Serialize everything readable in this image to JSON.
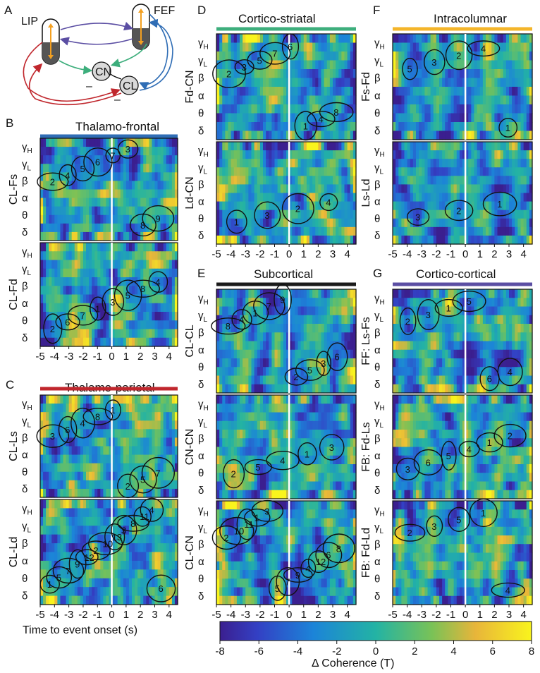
{
  "panels": {
    "A": {
      "letter": "A",
      "nodes": {
        "lip": "LIP",
        "fef": "FEF",
        "cn": "CN",
        "cl": "CL"
      },
      "minus1": "–",
      "minus2": "–"
    },
    "B": {
      "letter": "B",
      "title": "Thalamo-frontal",
      "color": "#2f6db5",
      "sub": [
        {
          "label": "CL-Fs",
          "clusters": [
            "2",
            "4",
            "5",
            "6",
            "7",
            "3",
            "8",
            "9"
          ]
        },
        {
          "label": "CL-Fd",
          "clusters": [
            "2",
            "6",
            "7",
            "1",
            "3",
            "5",
            "8",
            "4"
          ]
        }
      ]
    },
    "C": {
      "letter": "C",
      "title": "Thalamo-parietal",
      "color": "#c0272d",
      "sub": [
        {
          "label": "CL-Ls",
          "clusters": [
            "3",
            "6",
            "4",
            "8",
            "1",
            "2",
            "5",
            "7"
          ]
        },
        {
          "label": "CL-Ld",
          "clusters": [
            "1",
            "5",
            "7",
            "9",
            "12",
            "2",
            "10",
            "13",
            "3",
            "8",
            "11",
            "4",
            "6"
          ]
        }
      ]
    },
    "D": {
      "letter": "D",
      "title": "Cortico-striatal",
      "color": "#3dae7c",
      "sub": [
        {
          "label": "Fd-CN",
          "clusters": [
            "2",
            "3",
            "5",
            "7",
            "6",
            "1",
            "4",
            "8"
          ]
        },
        {
          "label": "Ld-CN",
          "clusters": [
            "1",
            "3",
            "2",
            "4"
          ]
        }
      ]
    },
    "E": {
      "letter": "E",
      "title": "Subcortical",
      "color": "#1a1a1a",
      "sub": [
        {
          "label": "CL-CL",
          "clusters": [
            "8",
            "4",
            "1",
            "7",
            "9",
            "2",
            "5",
            "3",
            "6"
          ]
        },
        {
          "label": "CN-CN",
          "clusters": [
            "2",
            "5",
            "4",
            "1",
            "3"
          ]
        },
        {
          "label": "CL-CN",
          "clusters": [
            "2",
            "10",
            "11",
            "1",
            "3",
            "5",
            "7",
            "9",
            "4",
            "12",
            "6",
            "8"
          ]
        }
      ]
    },
    "F": {
      "letter": "F",
      "title": "Intracolumnar",
      "color": "#f4b52a",
      "sub": [
        {
          "label": "Fs-Fd",
          "clusters": [
            "5",
            "3",
            "2",
            "4",
            "1"
          ]
        },
        {
          "label": "Ls-Ld",
          "clusters": [
            "3",
            "2",
            "1"
          ]
        }
      ]
    },
    "G": {
      "letter": "G",
      "title": "Cortico-cortical",
      "color": "#5b4ea3",
      "sub": [
        {
          "label": "FF: Ls-Fs",
          "clusters": [
            "2",
            "3",
            "1",
            "5",
            "6",
            "4"
          ]
        },
        {
          "label": "FB: Fd-Ls",
          "clusters": [
            "3",
            "6",
            "5",
            "4",
            "1",
            "2"
          ]
        },
        {
          "label": "FB: Fd-Ld",
          "clusters": [
            "2",
            "3",
            "5",
            "1",
            "4"
          ]
        }
      ]
    }
  },
  "bands": [
    "γH",
    "γL",
    "β",
    "α",
    "θ",
    "δ"
  ],
  "time_ticks": [
    "-5",
    "-4",
    "-3",
    "-2",
    "-1",
    "0",
    "1",
    "2",
    "3",
    "4"
  ],
  "x_axis_label": "Time to event onset (s)",
  "colorbar": {
    "label": "Δ Coherence (T)",
    "ticks": [
      "-8",
      "-6",
      "-4",
      "-2",
      "0",
      "2",
      "4",
      "6",
      "8"
    ],
    "min": -8,
    "max": 8
  }
}
